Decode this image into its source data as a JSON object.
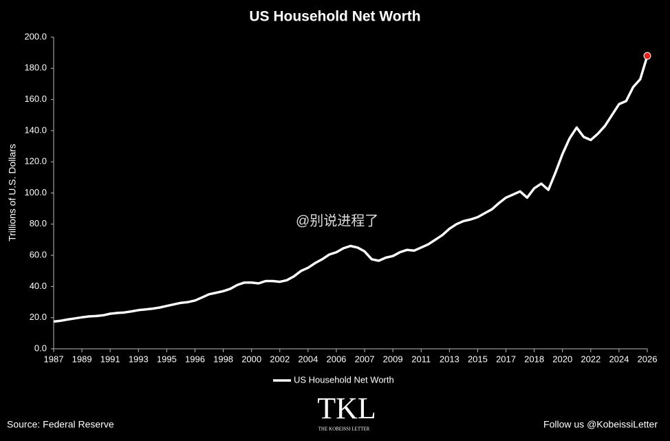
{
  "chart_data": {
    "type": "line",
    "title": "US Household Net Worth",
    "ylabel": "Trillions of U.S. Dollars",
    "source": "Source: Federal Reserve",
    "follow": "Follow us @KobeissiLetter",
    "logo": "TKL",
    "logo_subtitle": "THE KOBEISSI LETTER",
    "watermark": "@别说进程了",
    "categories": [
      "1987",
      null,
      null,
      null,
      "1989",
      null,
      null,
      null,
      "1991",
      null,
      null,
      null,
      "1993",
      null,
      null,
      null,
      "1995",
      null,
      null,
      null,
      "1996",
      null,
      null,
      null,
      "1998",
      null,
      null,
      null,
      "2000",
      null,
      null,
      null,
      "2002",
      null,
      null,
      null,
      "2004",
      null,
      null,
      null,
      "2006",
      null,
      null,
      null,
      "2007",
      null,
      null,
      null,
      "2009",
      null,
      null,
      null,
      "2011",
      null,
      null,
      null,
      "2013",
      null,
      null,
      null,
      "2015",
      null,
      null,
      null,
      "2017",
      null,
      null,
      null,
      "2018",
      null,
      null,
      null,
      "2020",
      null,
      null,
      null,
      "2022",
      null,
      null,
      null,
      "2024",
      null,
      null,
      null,
      "2026"
    ],
    "series": [
      {
        "name": "US Household Net Worth",
        "color": "#ffffff",
        "marker_color": "#e0231c",
        "values": [
          17.5,
          18,
          18.8,
          19.5,
          20.2,
          20.8,
          21,
          21.5,
          22.5,
          23,
          23.3,
          24,
          24.8,
          25.3,
          25.8,
          26.5,
          27.5,
          28.5,
          29.5,
          30,
          31,
          33,
          35,
          36,
          37,
          38.5,
          41,
          42.5,
          42.5,
          42,
          43.5,
          43.5,
          43,
          44,
          46.5,
          50,
          52,
          55,
          57.5,
          60.5,
          62,
          64.5,
          66,
          65,
          62.5,
          57.5,
          56.5,
          58.5,
          59.5,
          62,
          63.5,
          63,
          65,
          67,
          70,
          73,
          77,
          80,
          82,
          83,
          84.5,
          87,
          89.5,
          93.5,
          97,
          99,
          101,
          97,
          103,
          106,
          102,
          113,
          125,
          135,
          142,
          136,
          134,
          138,
          143,
          150,
          157,
          159,
          168,
          173,
          188
        ]
      }
    ],
    "ylim": [
      0,
      200
    ],
    "yticks": [
      {
        "value": 0,
        "label": "0.0"
      },
      {
        "value": 20,
        "label": "20.0"
      },
      {
        "value": 40,
        "label": "40.0"
      },
      {
        "value": 60,
        "label": "60.0"
      },
      {
        "value": 80,
        "label": "80.0"
      },
      {
        "value": 100,
        "label": "100.0"
      },
      {
        "value": 120,
        "label": "120.0"
      },
      {
        "value": 140,
        "label": "140.0"
      },
      {
        "value": 160,
        "label": "160.0"
      },
      {
        "value": 180,
        "label": "180.0"
      },
      {
        "value": 200,
        "label": "200.0"
      }
    ],
    "grid": false,
    "legend": "bottom"
  }
}
